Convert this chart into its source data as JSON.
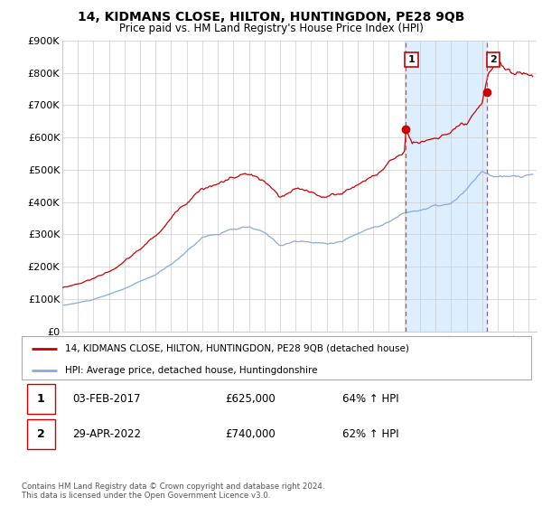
{
  "title": "14, KIDMANS CLOSE, HILTON, HUNTINGDON, PE28 9QB",
  "subtitle": "Price paid vs. HM Land Registry's House Price Index (HPI)",
  "ylabel_ticks": [
    "£0",
    "£100K",
    "£200K",
    "£300K",
    "£400K",
    "£500K",
    "£600K",
    "£700K",
    "£800K",
    "£900K"
  ],
  "ytick_values": [
    0,
    100000,
    200000,
    300000,
    400000,
    500000,
    600000,
    700000,
    800000,
    900000
  ],
  "ylim": [
    0,
    900000
  ],
  "xlim_start": 1995.0,
  "xlim_end": 2025.5,
  "red_line_color": "#cc0000",
  "blue_line_color": "#88aadd",
  "shade_color": "#ddeeff",
  "marker1_year": 2017.083,
  "marker1_value": 625000,
  "marker2_year": 2022.33,
  "marker2_value": 740000,
  "vline_color": "#dd4444",
  "grid_color": "#cccccc",
  "background_color": "#ffffff",
  "legend_label_red": "14, KIDMANS CLOSE, HILTON, HUNTINGDON, PE28 9QB (detached house)",
  "legend_label_blue": "HPI: Average price, detached house, Huntingdonshire",
  "annotation1_label": "1",
  "annotation2_label": "2",
  "table_row1": [
    "1",
    "03-FEB-2017",
    "£625,000",
    "64% ↑ HPI"
  ],
  "table_row2": [
    "2",
    "29-APR-2022",
    "£740,000",
    "62% ↑ HPI"
  ],
  "footer": "Contains HM Land Registry data © Crown copyright and database right 2024.\nThis data is licensed under the Open Government Licence v3.0.",
  "hpi_scale": 1.0,
  "red_scale": 1.78
}
